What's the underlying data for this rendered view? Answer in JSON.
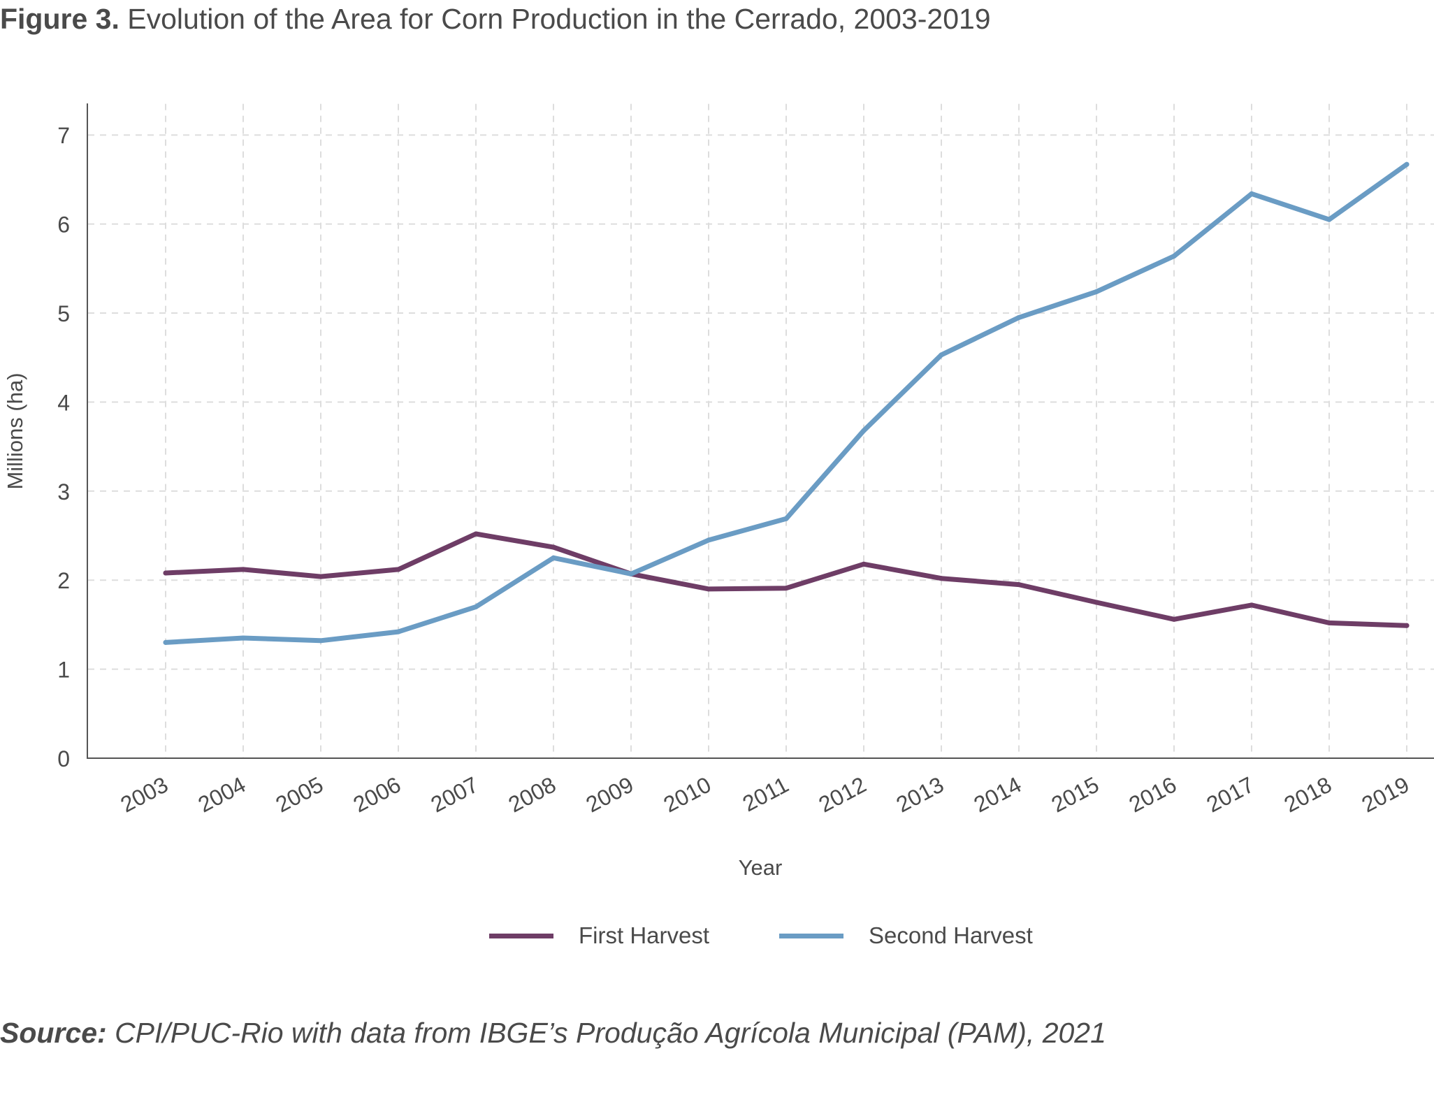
{
  "figure": {
    "label": "Figure 3.",
    "title": "Evolution of the Area for Corn Production in the Cerrado, 2003-2019"
  },
  "source": {
    "label": "Source:",
    "text": "CPI/PUC-Rio with data from IBGE’s Produção Agrícola Municipal (PAM), 2021"
  },
  "colors": {
    "first_harvest": "#6e3d66",
    "second_harvest": "#6a9cc4",
    "axis": "#555555",
    "grid": "#dddddd",
    "text": "#4a4a4a"
  },
  "chart_data": {
    "type": "line",
    "xlabel": "Year",
    "ylabel": "Millions (ha)",
    "ylim": [
      0,
      7.35
    ],
    "yticks": [
      0,
      1,
      2,
      3,
      4,
      5,
      6,
      7
    ],
    "grid": true,
    "legend_position": "bottom",
    "categories": [
      "2003",
      "2004",
      "2005",
      "2006",
      "2007",
      "2008",
      "2009",
      "2010",
      "2011",
      "2012",
      "2013",
      "2014",
      "2015",
      "2016",
      "2017",
      "2018",
      "2019"
    ],
    "series": [
      {
        "name": "First Harvest",
        "color": "#6e3d66",
        "values": [
          2.08,
          2.12,
          2.04,
          2.12,
          2.52,
          2.37,
          2.07,
          1.9,
          1.91,
          2.18,
          2.02,
          1.95,
          1.75,
          1.56,
          1.72,
          1.52,
          1.49
        ]
      },
      {
        "name": "Second Harvest",
        "color": "#6a9cc4",
        "values": [
          1.3,
          1.35,
          1.32,
          1.42,
          1.7,
          2.25,
          2.07,
          2.45,
          2.69,
          3.68,
          4.53,
          4.95,
          5.24,
          5.64,
          6.34,
          6.05,
          6.67
        ]
      }
    ]
  }
}
